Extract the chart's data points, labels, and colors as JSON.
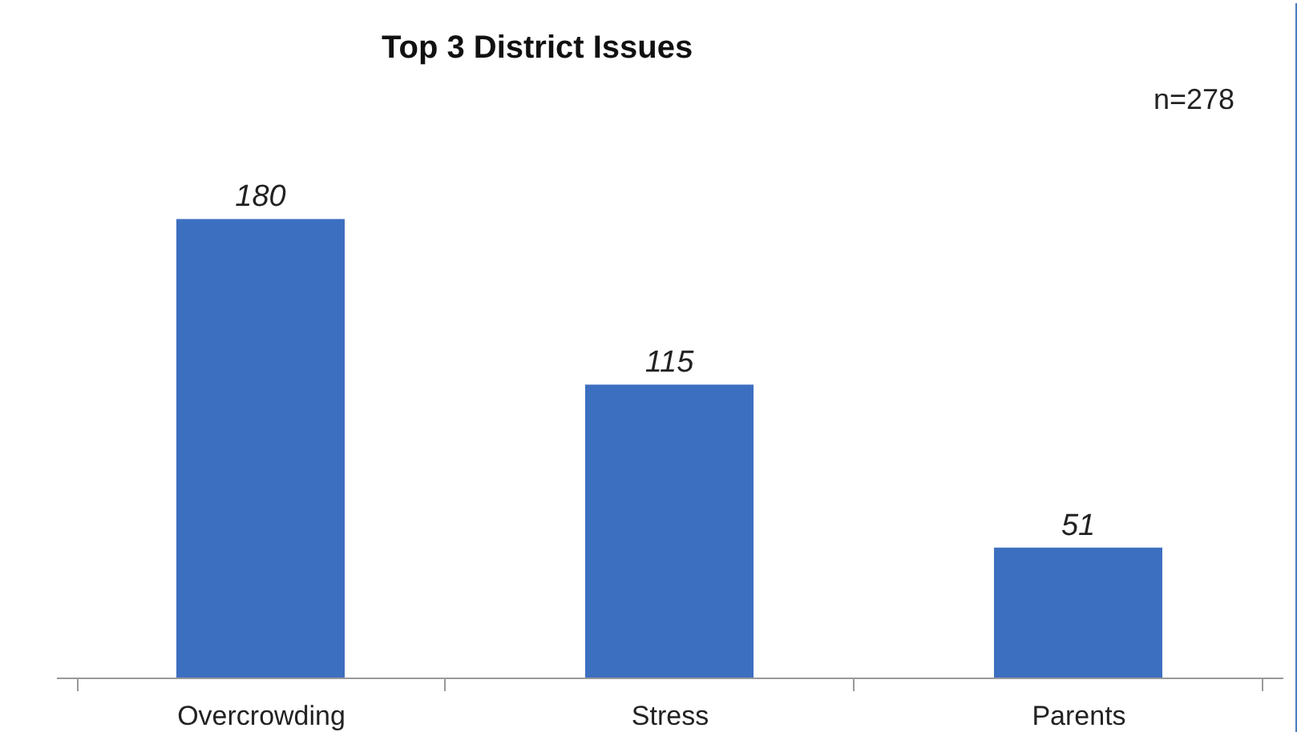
{
  "chart_data": {
    "type": "bar",
    "title": "Top 3 District Issues",
    "categories": [
      "Overcrowding",
      "Stress",
      "Parents"
    ],
    "values": [
      180,
      115,
      51
    ],
    "color": "#3d6fc0",
    "data_labels": true,
    "annotations": [
      "n=278"
    ]
  }
}
